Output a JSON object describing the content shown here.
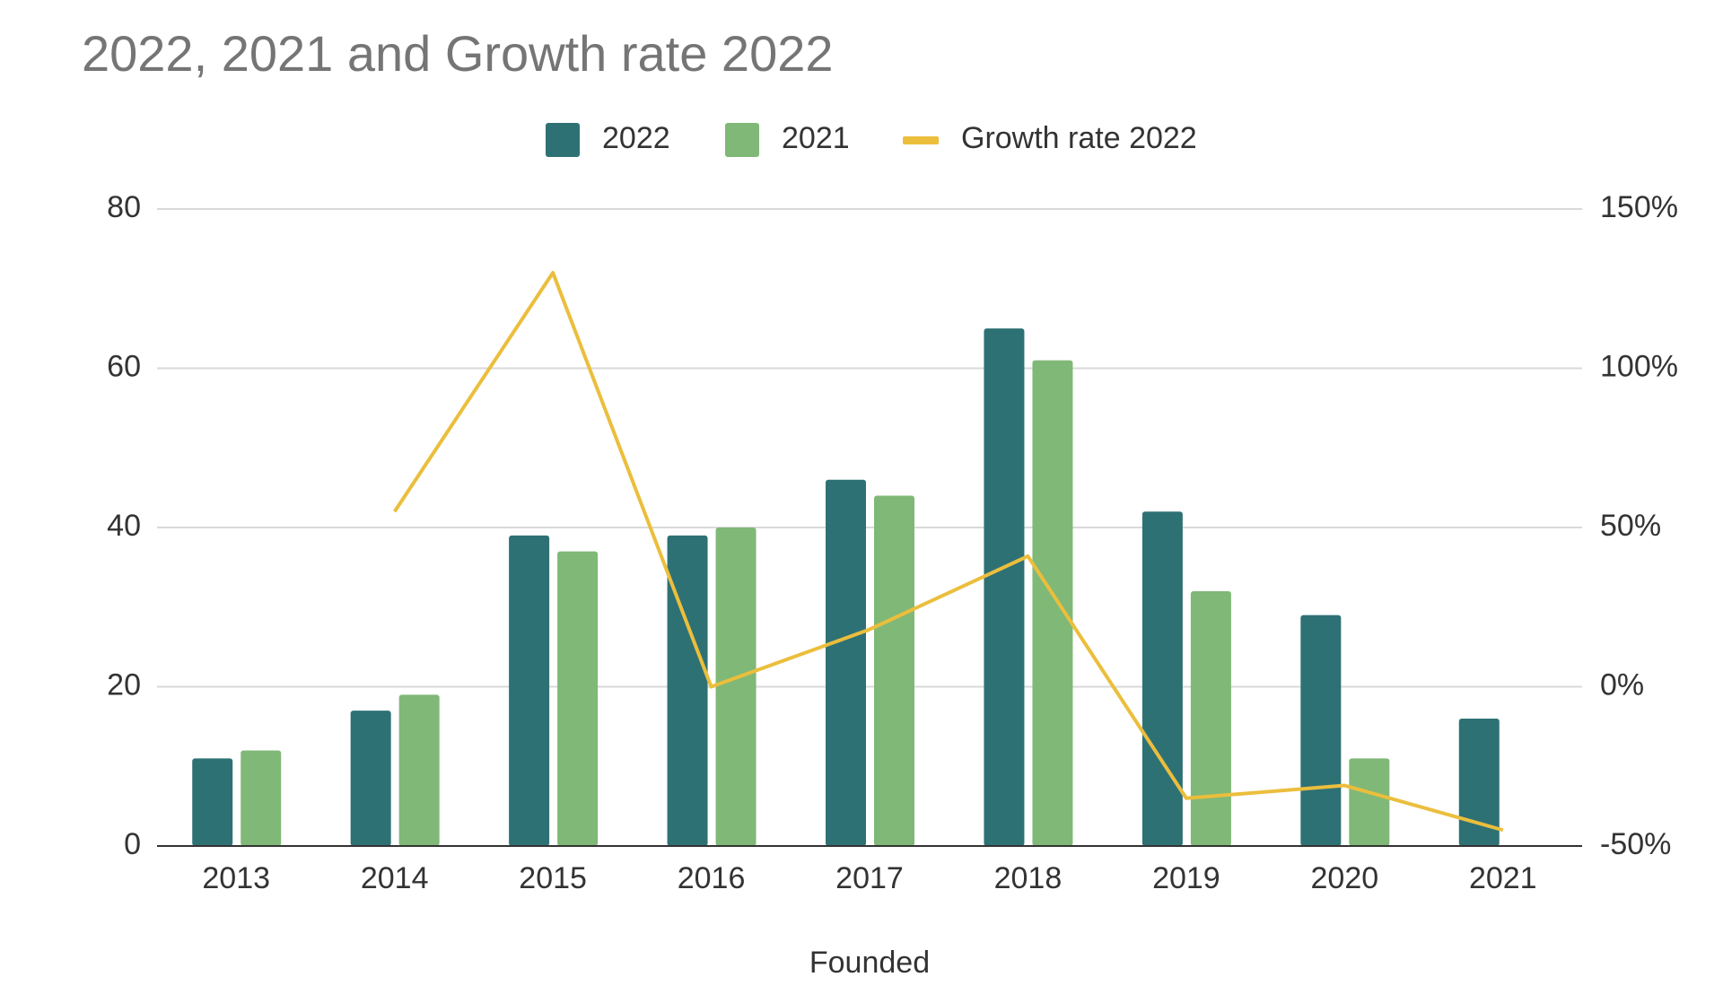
{
  "chart_data": {
    "type": "bar",
    "title": "2022, 2021 and Growth rate 2022",
    "xlabel": "Founded",
    "categories": [
      "2013",
      "2014",
      "2015",
      "2016",
      "2017",
      "2018",
      "2019",
      "2020",
      "2021"
    ],
    "series": [
      {
        "name": "2022",
        "type": "bar",
        "color": "#2e7175",
        "values": [
          11,
          17,
          39,
          39,
          46,
          65,
          42,
          29,
          16
        ]
      },
      {
        "name": "2021",
        "type": "bar",
        "color": "#80b877",
        "values": [
          12,
          19,
          37,
          40,
          44,
          61,
          32,
          11,
          null
        ]
      },
      {
        "name": "Growth rate 2022",
        "type": "line",
        "axis": "y2",
        "color": "#ebbe3c",
        "values": [
          null,
          55,
          130,
          0,
          18,
          41,
          -35,
          -31,
          -45
        ]
      }
    ],
    "ylim": [
      0,
      80
    ],
    "yticks": [
      0,
      20,
      40,
      60,
      80
    ],
    "y2lim": [
      -50,
      150
    ],
    "y2ticks": [
      {
        "value": -50,
        "label": "-50%"
      },
      {
        "value": 0,
        "label": "0%"
      },
      {
        "value": 50,
        "label": "50%"
      },
      {
        "value": 100,
        "label": "100%"
      },
      {
        "value": 150,
        "label": "150%"
      }
    ],
    "grid": true,
    "legend": "top"
  }
}
